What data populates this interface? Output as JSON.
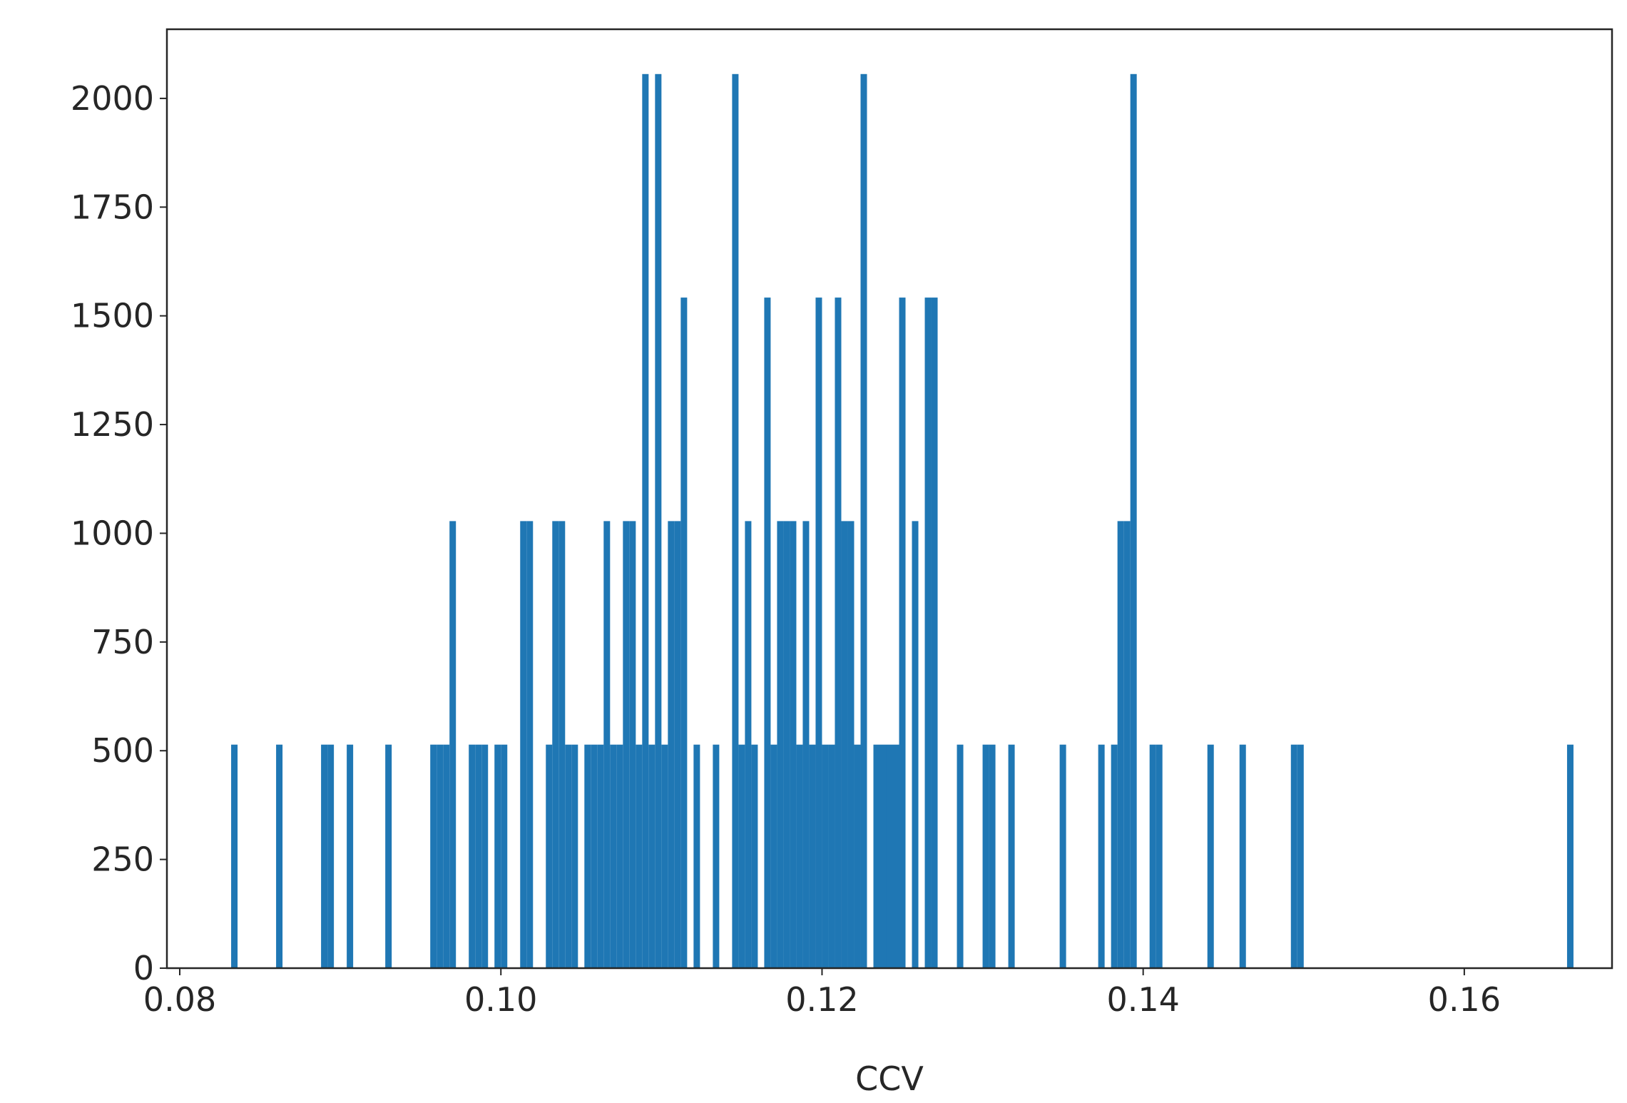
{
  "chart_data": {
    "type": "histogram",
    "xlabel": "CCV",
    "color": "#1f77b4",
    "bins": [
      0.0832,
      0.0836,
      0.084,
      0.0844,
      0.0848,
      0.0852,
      0.0856,
      0.086,
      0.0864,
      0.0868,
      0.0872,
      0.0876,
      0.088,
      0.0884,
      0.0888,
      0.0892,
      0.0896,
      0.09,
      0.0904,
      0.0908,
      0.0912,
      0.0916,
      0.092,
      0.0924,
      0.0928,
      0.0932,
      0.0936,
      0.094,
      0.0944,
      0.0948,
      0.0952,
      0.0956,
      0.096,
      0.0964,
      0.0968,
      0.0972,
      0.0976,
      0.098,
      0.0984,
      0.0988,
      0.0992,
      0.0996,
      0.1,
      0.1004,
      0.1008,
      0.1012,
      0.1016,
      0.102,
      0.1024,
      0.1028,
      0.1032,
      0.1036,
      0.104,
      0.1044,
      0.1048,
      0.1052,
      0.1056,
      0.106,
      0.1064,
      0.1068,
      0.1072,
      0.1076,
      0.108,
      0.1084,
      0.1088,
      0.1092,
      0.1096,
      0.11,
      0.1104,
      0.1108,
      0.1112,
      0.1116,
      0.112,
      0.1124,
      0.1128,
      0.1132,
      0.1136,
      0.114,
      0.1144,
      0.1148,
      0.1152,
      0.1156,
      0.116,
      0.1164,
      0.1168,
      0.1172,
      0.1176,
      0.118,
      0.1184,
      0.1188,
      0.1192,
      0.1196,
      0.12,
      0.1204,
      0.1208,
      0.1212,
      0.1216,
      0.122,
      0.1224,
      0.1228,
      0.1232,
      0.1236,
      0.124,
      0.1244,
      0.1248,
      0.1252,
      0.1256,
      0.126,
      0.1264,
      0.1268,
      0.1272,
      0.1276,
      0.128,
      0.1284,
      0.1288,
      0.1292,
      0.1296,
      0.13,
      0.1304,
      0.1308,
      0.1312,
      0.1316,
      0.132,
      0.1324,
      0.1328,
      0.1332,
      0.1336,
      0.134,
      0.1344,
      0.1348,
      0.1352,
      0.1356,
      0.136,
      0.1364,
      0.1368,
      0.1372,
      0.1376,
      0.138,
      0.1384,
      0.1388,
      0.1392,
      0.1396,
      0.14,
      0.1404,
      0.1408,
      0.1412,
      0.1416,
      0.142,
      0.1424,
      0.1428,
      0.1432,
      0.1436,
      0.144,
      0.1444,
      0.1448,
      0.1452,
      0.1456,
      0.146,
      0.1464,
      0.1468,
      0.1472,
      0.1476,
      0.148,
      0.1484,
      0.1488,
      0.1492,
      0.1496,
      0.15,
      0.1504,
      0.1508,
      0.1512,
      0.1516,
      0.152,
      0.1524,
      0.1528,
      0.1532,
      0.1536,
      0.154,
      0.1544,
      0.1548,
      0.1552,
      0.1556,
      0.156,
      0.1564,
      0.1568,
      0.1572,
      0.1576,
      0.158,
      0.1584,
      0.1588,
      0.1592,
      0.1596,
      0.16,
      0.1604,
      0.1608,
      0.1612,
      0.1616,
      0.162,
      0.1624,
      0.1628,
      0.1632,
      0.1636,
      0.164,
      0.1644,
      0.1648,
      0.1652,
      0.1656,
      0.166,
      0.1664,
      0.1668,
      0.1672
    ],
    "values": [
      514,
      0,
      0,
      0,
      0,
      0,
      0,
      514,
      0,
      0,
      0,
      0,
      0,
      0,
      514,
      514,
      0,
      0,
      514,
      0,
      0,
      0,
      0,
      0,
      514,
      0,
      0,
      0,
      0,
      0,
      0,
      514,
      514,
      514,
      1028,
      0,
      0,
      514,
      514,
      514,
      0,
      514,
      514,
      0,
      0,
      1028,
      1028,
      0,
      0,
      514,
      1028,
      1028,
      514,
      514,
      0,
      514,
      514,
      514,
      1028,
      514,
      514,
      1028,
      1028,
      514,
      2056,
      514,
      2056,
      514,
      1028,
      1028,
      1542,
      0,
      514,
      0,
      0,
      514,
      0,
      0,
      2056,
      514,
      1028,
      514,
      0,
      1542,
      514,
      1028,
      1028,
      1028,
      514,
      1028,
      514,
      1542,
      514,
      514,
      1542,
      1028,
      1028,
      514,
      2056,
      0,
      514,
      514,
      514,
      514,
      1542,
      0,
      1028,
      0,
      1542,
      1542,
      0,
      0,
      0,
      514,
      0,
      0,
      0,
      514,
      514,
      0,
      0,
      514,
      0,
      0,
      0,
      0,
      0,
      0,
      0,
      514,
      0,
      0,
      0,
      0,
      0,
      514,
      0,
      514,
      1028,
      1028,
      2056,
      0,
      0,
      514,
      514,
      0,
      0,
      0,
      0,
      0,
      0,
      0,
      514,
      0,
      0,
      0,
      0,
      514,
      0,
      0,
      0,
      0,
      0,
      0,
      0,
      514,
      514,
      0,
      0,
      0,
      0,
      0,
      0,
      0,
      0,
      0,
      0,
      0,
      0,
      0,
      0,
      0,
      0,
      0,
      0,
      0,
      0,
      0,
      0,
      0,
      0,
      0,
      0,
      0,
      0,
      0,
      0,
      0,
      0,
      0,
      0,
      0,
      0,
      0,
      0,
      0,
      0,
      0,
      514,
      0
    ],
    "xlim": [
      0.0792,
      0.1692
    ],
    "ylim": [
      0,
      2159
    ],
    "xticks": [
      0.08,
      {
        "value": 0.1,
        "label": "0.10"
      },
      0.12,
      0.14,
      0.16
    ],
    "yticks": [
      0,
      250,
      500,
      750,
      1000,
      1250,
      1500,
      1750,
      2000
    ]
  }
}
